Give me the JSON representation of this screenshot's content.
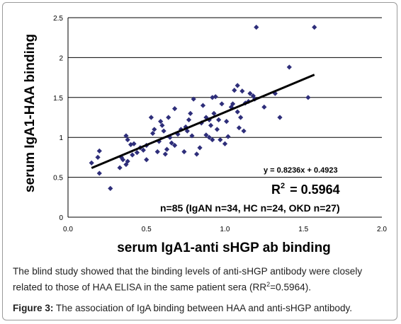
{
  "chart_data": {
    "type": "scatter",
    "xlabel": "serum IgA1-anti sHGP ab binding",
    "ylabel": "serum IgA1-HAA binding",
    "xlim": [
      0,
      2
    ],
    "ylim": [
      0,
      2.5
    ],
    "x_ticks": [
      "0.0",
      "0.5",
      "1.0",
      "1.5",
      "2.0"
    ],
    "y_ticks": [
      "0",
      "0.5",
      "1",
      "1.5",
      "2",
      "2.5"
    ],
    "grid": "horizontal",
    "marker_color": "#2e2e7a",
    "trendline": {
      "slope": 0.8236,
      "intercept": 0.4923,
      "x_range": [
        0.15,
        1.57
      ]
    },
    "equation_label": "y  = 0.8236x + 0.4923",
    "r2_label_base": "R",
    "r2_label_sup": "2",
    "r2_label_value": "=  0.5964",
    "n_label": "n=85 (IgAN n=34, HC n=24, OKD n=27)",
    "points": [
      [
        0.15,
        0.68
      ],
      [
        0.19,
        0.75
      ],
      [
        0.2,
        0.83
      ],
      [
        0.2,
        0.55
      ],
      [
        0.27,
        0.36
      ],
      [
        0.33,
        0.62
      ],
      [
        0.34,
        0.75
      ],
      [
        0.35,
        0.72
      ],
      [
        0.37,
        0.66
      ],
      [
        0.37,
        1.02
      ],
      [
        0.38,
        0.97
      ],
      [
        0.38,
        0.7
      ],
      [
        0.4,
        0.91
      ],
      [
        0.41,
        0.78
      ],
      [
        0.42,
        0.92
      ],
      [
        0.44,
        0.81
      ],
      [
        0.46,
        0.87
      ],
      [
        0.48,
        0.84
      ],
      [
        0.5,
        0.9
      ],
      [
        0.5,
        0.72
      ],
      [
        0.53,
        1.25
      ],
      [
        0.54,
        1.05
      ],
      [
        0.55,
        1.1
      ],
      [
        0.57,
        0.82
      ],
      [
        0.58,
        0.95
      ],
      [
        0.59,
        1.2
      ],
      [
        0.6,
        1.15
      ],
      [
        0.61,
        1.08
      ],
      [
        0.62,
        0.79
      ],
      [
        0.63,
        0.85
      ],
      [
        0.64,
        1.25
      ],
      [
        0.65,
        1.0
      ],
      [
        0.66,
        0.93
      ],
      [
        0.68,
        0.9
      ],
      [
        0.68,
        1.36
      ],
      [
        0.7,
        1.04
      ],
      [
        0.72,
        1.1
      ],
      [
        0.74,
        0.82
      ],
      [
        0.75,
        1.13
      ],
      [
        0.76,
        1.08
      ],
      [
        0.77,
        1.22
      ],
      [
        0.78,
        1.3
      ],
      [
        0.79,
        1.02
      ],
      [
        0.8,
        1.48
      ],
      [
        0.82,
        0.79
      ],
      [
        0.84,
        0.87
      ],
      [
        0.85,
        1.18
      ],
      [
        0.86,
        1.4
      ],
      [
        0.88,
        1.25
      ],
      [
        0.88,
        1.03
      ],
      [
        0.9,
        1.0
      ],
      [
        0.9,
        1.22
      ],
      [
        0.91,
        1.15
      ],
      [
        0.92,
        1.5
      ],
      [
        0.92,
        0.97
      ],
      [
        0.93,
        1.3
      ],
      [
        0.94,
        1.51
      ],
      [
        0.95,
        1.1
      ],
      [
        0.96,
        1.22
      ],
      [
        0.97,
        0.97
      ],
      [
        0.98,
        1.42
      ],
      [
        1.0,
        0.92
      ],
      [
        1.01,
        1.2
      ],
      [
        1.02,
        1.01
      ],
      [
        1.04,
        1.38
      ],
      [
        1.05,
        1.42
      ],
      [
        1.06,
        1.59
      ],
      [
        1.08,
        1.65
      ],
      [
        1.08,
        1.32
      ],
      [
        1.09,
        1.12
      ],
      [
        1.1,
        1.25
      ],
      [
        1.11,
        1.58
      ],
      [
        1.12,
        1.08
      ],
      [
        1.13,
        1.43
      ],
      [
        1.15,
        1.45
      ],
      [
        1.16,
        1.55
      ],
      [
        1.18,
        1.52
      ],
      [
        1.19,
        1.48
      ],
      [
        1.2,
        2.38
      ],
      [
        1.25,
        1.38
      ],
      [
        1.32,
        1.55
      ],
      [
        1.35,
        1.25
      ],
      [
        1.41,
        1.88
      ],
      [
        1.53,
        1.5
      ],
      [
        1.57,
        2.38
      ]
    ]
  },
  "caption": {
    "text_before": "The blind study showed that the binding levels of anti-sHGP antibody were closely related to those of HAA ELISA in the same patient sera (RR",
    "text_sup": "2",
    "text_after": "=0.5964)."
  },
  "figure": {
    "label": "Figure 3:",
    "text": " The association of IgA binding between HAA and anti-sHGP antibody."
  }
}
